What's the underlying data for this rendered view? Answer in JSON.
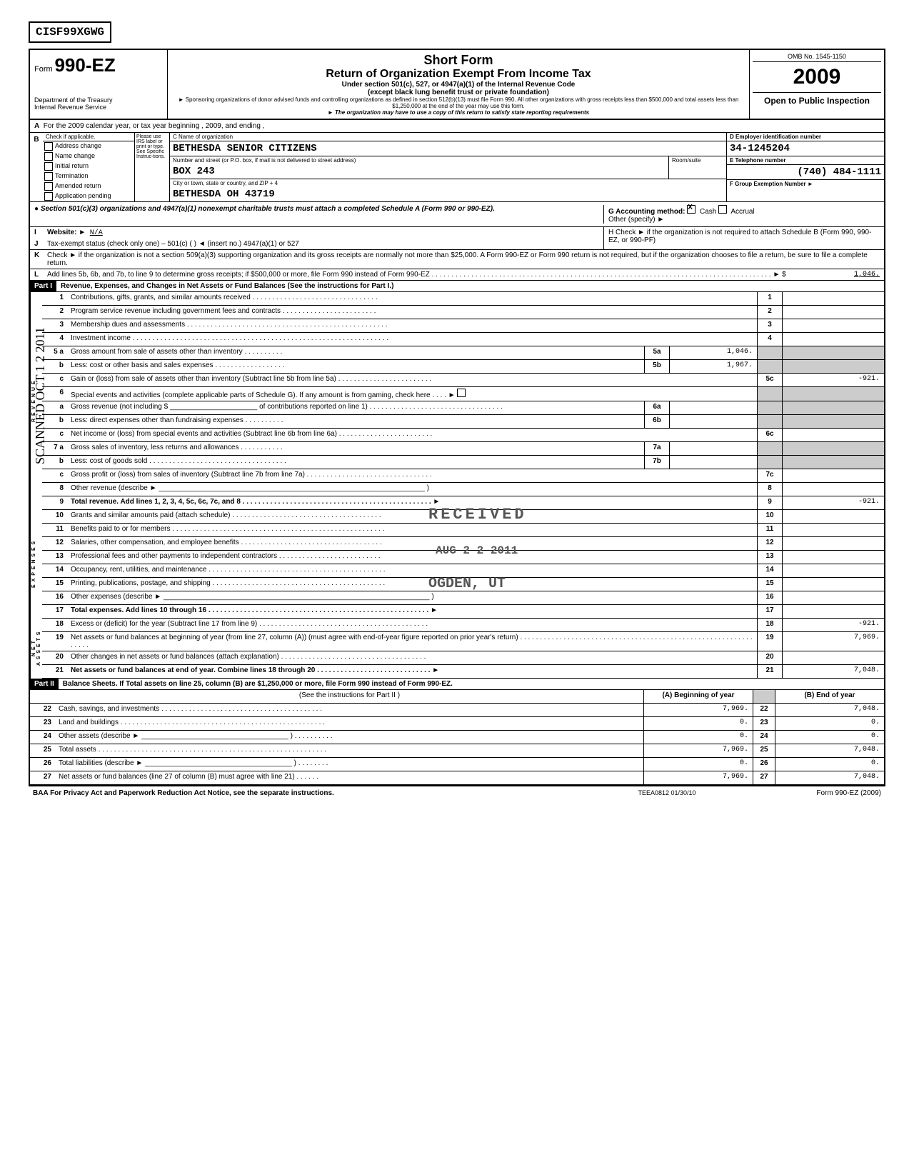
{
  "doc_id": "CISF99XGWG",
  "header": {
    "form_label": "Form",
    "form_number": "990-EZ",
    "dept": "Department of the Treasury",
    "irs": "Internal Revenue Service",
    "short_form": "Short Form",
    "title": "Return of Organization Exempt From Income Tax",
    "sub1": "Under section 501(c), 527, or 4947(a)(1) of the Internal Revenue Code",
    "sub2": "(except black lung benefit trust or private foundation)",
    "tiny1": "► Sponsoring organizations of donor advised funds and controlling organizations as defined in section 512(b)(13) must file Form 990. All other organizations with gross receipts less than $500,000 and total assets less than $1,250,000 at the end of the year may use this form.",
    "tiny2": "► The organization may have to use a copy of this return to satisfy state reporting requirements",
    "omb": "OMB No. 1545-1150",
    "year": "2009",
    "open": "Open to Public Inspection"
  },
  "lineA": "For the 2009 calendar year, or tax year beginning                                            , 2009, and ending                                    ,",
  "check_items": [
    "Address change",
    "Name change",
    "Initial return",
    "Termination",
    "Amended return",
    "Application pending"
  ],
  "b_label": "Check if applicable.",
  "b_instruct": "Please use IRS label or print or type. See Specific Instruc-tions.",
  "c_label": "C   Name of organization",
  "org_name": "BETHESDA SENIOR CITIZENS",
  "addr_label": "Number and street (or P.O. box, if mail is not delivered to street address)",
  "room_label": "Room/suite",
  "box": "BOX 243",
  "city_label": "City or town, state or country, and ZIP + 4",
  "city": "BETHESDA                                                                  OH   43719",
  "d_label": "D  Employer identification number",
  "ein": "34-1245204",
  "e_label": "E   Telephone number",
  "phone": "(740) 484-1111",
  "f_label": "F   Group Exemption Number      ►",
  "sec501": "● Section 501(c)(3) organizations and 4947(a)(1) nonexempt charitable trusts must attach a completed Schedule A (Form 990 or 990-EZ).",
  "g_label": "G   Accounting method:",
  "g_cash": "Cash",
  "g_accrual": "Accrual",
  "g_other": "Other (specify) ►",
  "h_label": "H   Check ►        if the organization is not required to attach Schedule B (Form 990, 990-EZ, or 990-PF)",
  "i_label": "Website: ►",
  "i_val": "N/A",
  "j_label": "Tax-exempt status (check only one) –        501(c)  (        ) ◄ (insert no.)        4947(a)(1) or        527",
  "k_label": "Check ►        if the organization is not a section 509(a)(3) supporting organization and its gross receipts are normally not more than $25,000. A Form 990-EZ or Form 990 return is not required, but if the organization chooses to file a return, be sure to file a complete return.",
  "l_label": "Add lines 5b, 6b, and 7b, to line 9 to determine gross receipts; if $500,000 or more, file Form 990 instead of Form 990-EZ . . . . . . . . . . . . . . . . . . . . . . . . . . . . . . . . . . . . . . . . . . . . . . . . . . . . . . . . . . . . . . . . . . . . . . . . . . . . . . . . . . . . . .  ► $",
  "l_val": "1,046.",
  "part1_title": "Revenue, Expenses, and Changes in Net Assets or Fund Balances (See the instructions for Part I.)",
  "p1": {
    "r1": "Contributions, gifts, grants, and similar amounts received . . . . . . . . . . . . . . . . . . . . . . . . . . . . . . . .",
    "r2": "Program service revenue including government fees and contracts . . . . . . . . . . . . . . . . . . . . . . . .",
    "r3": "Membership dues and assessments . . . . . . . . . . . . . . . . . . . . . . . . . . . . . . . . . . . . . . . . . . . . . . . . . . .",
    "r4": "Investment income . . . . . . . . . . . . . . . . . . . . . . . . . . . . . . . . . . . . . . . . . . . . . . . . . . . . . . . . . . . . . . . . .",
    "r5a": "Gross amount from sale of assets other than inventory . . . . . . . . . .",
    "r5a_val": "1,046.",
    "r5b": "Less: cost or other basis and sales expenses . . . . . . . . . . . . . . . . . .",
    "r5b_val": "1,967.",
    "r5c": "Gain or (loss) from sale of assets other than inventory (Subtract line 5b from line 5a) . . . . . . . . . . . . . . . . . . . . . . . .",
    "r5c_val": "-921.",
    "r6": "Special events and activities (complete applicable parts of Schedule G). If any amount is from gaming, check here . . . .  ►",
    "r6a": "Gross revenue (not including $ ______________________ of contributions reported on line 1) . . . . . . . . . . . . . . . . . . . . . . . . . . . . . . . . . .",
    "r6b": "Less: direct expenses other than fundraising expenses . . . . . . . . . .",
    "r6c": "Net income or (loss) from special events and activities (Subtract line 6b from line 6a) . . . . . . . . . . . . . . . . . . . . . . . .",
    "r7a": "Gross sales of inventory, less returns and allowances . . . . . . . . . . .",
    "r7b": "Less: cost of goods sold . . . . . . . . . . . . . . . . . . . . . . . . . . . . . . . . . . .",
    "r7c": "Gross profit or (loss) from sales of inventory (Subtract line 7b from line 7a) . . . . . . . . . . . . . . . . . . . . . . . . . . . . . . . .",
    "r8": "Other revenue (describe ►",
    "r9": "Total revenue. Add lines 1, 2, 3, 4, 5c, 6c, 7c, and 8 . . . . . . . . . . . . . . . . . . . . . . . . . . . . . . . . . . . . . . . . . . . . . . . . ►",
    "r9_val": "-921.",
    "r10": "Grants and similar amounts paid (attach schedule) . . . . . . . . . . . . . . . . . . . . . . . . . . . . . . . . . . . . . .",
    "r11": "Benefits paid to or for members . . . . . . . . . . . . . . . . . . . . . . . . . . . . . . . . . . . . . . . . . . . . . . . . . . . . . .",
    "r12": "Salaries, other compensation, and employee benefits . . . . . . . . . . . . . . . . . . . . . . . . . . . . . . . . . . . .",
    "r13": "Professional fees and other payments to independent contractors . . . . . . . . . . . . . . . . . . . . . . . . . .",
    "r14": "Occupancy, rent, utilities, and maintenance . . . . . . . . . . . . . . . . . . . . . . . . . . . . . . . . . . . . . . . . . . . . .",
    "r15": "Printing, publications, postage, and shipping . . . . . . . . . . . . . . . . . . . . . . . . . . . . . . . . . . . . . . . . . . . .",
    "r16": "Other expenses (describe ►",
    "r17": "Total expenses. Add lines 10 through 16 . . . . . . . . . . . . . . . . . . . . . . . . . . . . . . . . . . . . . . . . . . . . . . . . . . . . . . . . ►",
    "r18": "Excess or (deficit) for the year (Subtract line 17 from line 9) . . . . . . . . . . . . . . . . . . . . . . . . . . . . . . . . . . . . . . . . . . .",
    "r18_val": "-921.",
    "r19": "Net assets or fund balances at beginning of year (from line 27, column (A)) (must agree with end-of-year figure reported on prior year's return) . . . . . . . . . . . . . . . . . . . . . . . . . . . . . . . . . . . . . . . . . . . . . . . . . . . . . . . . . . . . . . . .",
    "r19_val": "7,969.",
    "r20": "Other changes in net assets or fund balances (attach explanation) . . . . . . . . . . . . . . . . . . . . . . . . . . . . . . . . . . . . .",
    "r21": "Net assets or fund balances at end of year. Combine lines 18 through 20 . . . . . . . . . . . . . . . . . . . . . . . . . . . . . ►",
    "r21_val": "7,048."
  },
  "part2_title": "Balance Sheets. If Total assets on line 25, column (B) are $1,250,000 or more, file Form 990 instead of Form 990-EZ.",
  "part2_sub": "(See the instructions for Part II )",
  "colA": "(A) Beginning of year",
  "colB": "(B) End of year",
  "bs": [
    {
      "n": "22",
      "d": "Cash, savings, and investments . . . . . . . . . . . . . . . . . . . . . . . . . . . . . . . . . . . . . . . . .",
      "a": "7,969.",
      "b": "7,048."
    },
    {
      "n": "23",
      "d": "Land and buildings . . . . . . . . . . . . . . . . . . . . . . . . . . . . . . . . . . . . . . . . . . . . . . . . . . . .",
      "a": "0.",
      "b": "0."
    },
    {
      "n": "24",
      "d": "Other assets (describe ► _____________________________________ ) . . . . . . . . . .",
      "a": "0.",
      "b": "0."
    },
    {
      "n": "25",
      "d": "Total assets . . . . . . . . . . . . . . . . . . . . . . . . . . . . . . . . . . . . . . . . . . . . . . . . . . . . . . . . . .",
      "a": "7,969.",
      "b": "7,048."
    },
    {
      "n": "26",
      "d": "Total liabilities (describe ► _____________________________________ ) . . . . . . . .",
      "a": "0.",
      "b": "0."
    },
    {
      "n": "27",
      "d": "Net assets or fund balances (line 27 of column (B) must agree with line 21) . . . . . .",
      "a": "7,969.",
      "b": "7,048."
    }
  ],
  "footer": {
    "l": "BAA  For Privacy Act and Paperwork Reduction Act Notice, see the separate instructions.",
    "c": "TEEA0812   01/30/10",
    "r": "Form 990-EZ (2009)"
  },
  "stamps": {
    "received": "RECEIVED",
    "date": "AUG 2 2 2011",
    "ogden": "OGDEN, UT",
    "scanned": "SCANNED OCT 1 2 2011"
  }
}
